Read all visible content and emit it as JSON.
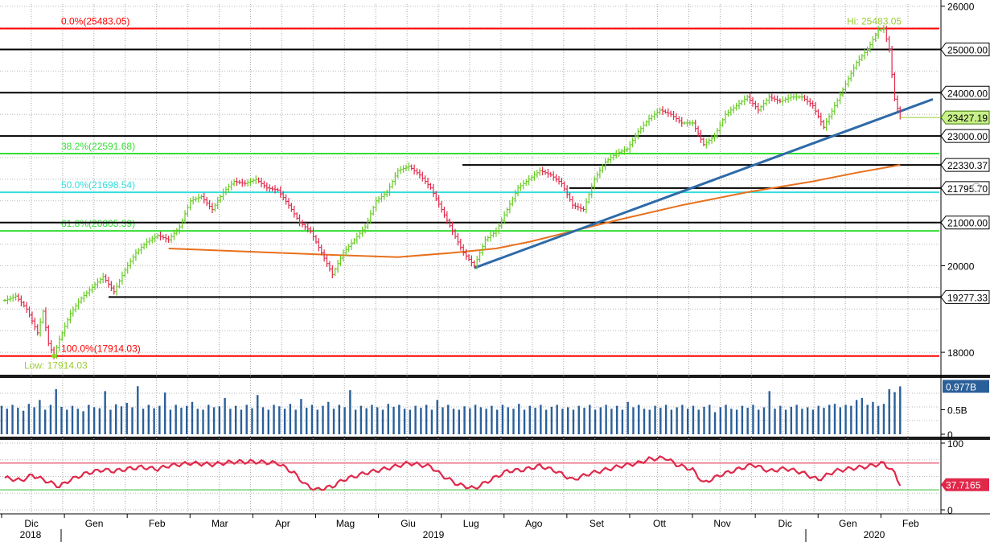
{
  "chart_data": {
    "type": "line",
    "main": {
      "price_ticks": [
        "18000",
        "20000",
        "26000"
      ],
      "price_tick_values": [
        18000,
        20000,
        26000
      ],
      "ylim": [
        17500,
        26050
      ],
      "high_label": "Hi: 25483.05",
      "low_label": "Low: 17914.03",
      "fib_levels": [
        {
          "label": "0.0%(25483.05)",
          "value": 25483.05,
          "color": "#ff0000"
        },
        {
          "label": "38.2%(22591.68)",
          "value": 22591.68,
          "color": "#33dd33"
        },
        {
          "label": "50.0%(21698.54)",
          "value": 21698.54,
          "color": "#33dddd"
        },
        {
          "label": "61.8%(20805.39)",
          "value": 20805.39,
          "color": "#33dd33"
        },
        {
          "label": "100.0%(17914.03)",
          "value": 17914.03,
          "color": "#ff0000"
        }
      ],
      "horizontal_levels": [
        {
          "label": "25000.00",
          "value": 25000
        },
        {
          "label": "24000.00",
          "value": 24000
        },
        {
          "label": "23000.00",
          "value": 23000
        },
        {
          "label": "22330.37",
          "value": 22330.37
        },
        {
          "label": "21795.70",
          "value": 21795.7
        },
        {
          "label": "21000.00",
          "value": 21000
        },
        {
          "label": "19277.33",
          "value": 19277.33
        }
      ],
      "last_price_label": "23427.19",
      "last_price": 23427.19,
      "price_path": [
        [
          0,
          19200
        ],
        [
          2,
          19300
        ],
        [
          4,
          19000
        ],
        [
          6,
          18450
        ],
        [
          7,
          18950
        ],
        [
          8,
          18200
        ],
        [
          9,
          17914
        ],
        [
          10,
          18300
        ],
        [
          12,
          18900
        ],
        [
          14,
          19250
        ],
        [
          16,
          19500
        ],
        [
          18,
          19750
        ],
        [
          20,
          19400
        ],
        [
          22,
          19900
        ],
        [
          24,
          20300
        ],
        [
          26,
          20550
        ],
        [
          28,
          20700
        ],
        [
          30,
          20600
        ],
        [
          32,
          20900
        ],
        [
          34,
          21500
        ],
        [
          36,
          21600
        ],
        [
          38,
          21300
        ],
        [
          40,
          21700
        ],
        [
          42,
          21950
        ],
        [
          44,
          21900
        ],
        [
          46,
          22000
        ],
        [
          48,
          21800
        ],
        [
          50,
          21750
        ],
        [
          52,
          21400
        ],
        [
          54,
          21000
        ],
        [
          56,
          20800
        ],
        [
          58,
          20300
        ],
        [
          60,
          19800
        ],
        [
          62,
          20300
        ],
        [
          64,
          20600
        ],
        [
          66,
          20900
        ],
        [
          68,
          21500
        ],
        [
          70,
          21700
        ],
        [
          72,
          22200
        ],
        [
          74,
          22300
        ],
        [
          76,
          22100
        ],
        [
          78,
          21800
        ],
        [
          80,
          21300
        ],
        [
          82,
          20800
        ],
        [
          84,
          20300
        ],
        [
          86,
          20000
        ],
        [
          88,
          20600
        ],
        [
          90,
          20800
        ],
        [
          92,
          21300
        ],
        [
          94,
          21800
        ],
        [
          96,
          22000
        ],
        [
          98,
          22200
        ],
        [
          100,
          22100
        ],
        [
          102,
          21900
        ],
        [
          104,
          21400
        ],
        [
          106,
          21300
        ],
        [
          108,
          22000
        ],
        [
          110,
          22400
        ],
        [
          112,
          22600
        ],
        [
          114,
          22700
        ],
        [
          116,
          23100
        ],
        [
          118,
          23400
        ],
        [
          120,
          23600
        ],
        [
          122,
          23500
        ],
        [
          124,
          23300
        ],
        [
          126,
          23300
        ],
        [
          128,
          22800
        ],
        [
          130,
          23000
        ],
        [
          132,
          23500
        ],
        [
          134,
          23700
        ],
        [
          136,
          23900
        ],
        [
          138,
          23600
        ],
        [
          140,
          23900
        ],
        [
          142,
          23800
        ],
        [
          144,
          23900
        ],
        [
          146,
          23900
        ],
        [
          148,
          23700
        ],
        [
          150,
          23200
        ],
        [
          152,
          23700
        ],
        [
          154,
          24200
        ],
        [
          156,
          24700
        ],
        [
          158,
          25000
        ],
        [
          160,
          25450
        ],
        [
          161,
          25483
        ],
        [
          162,
          25000
        ],
        [
          163,
          23850
        ],
        [
          164,
          23427
        ]
      ],
      "ma200_path": [
        [
          30,
          20400
        ],
        [
          50,
          20300
        ],
        [
          60,
          20250
        ],
        [
          72,
          20200
        ],
        [
          82,
          20300
        ],
        [
          90,
          20400
        ],
        [
          96,
          20550
        ],
        [
          104,
          20800
        ],
        [
          112,
          21050
        ],
        [
          124,
          21400
        ],
        [
          136,
          21700
        ],
        [
          148,
          21950
        ],
        [
          156,
          22150
        ],
        [
          164,
          22330
        ]
      ],
      "trendline": [
        [
          86,
          19950
        ],
        [
          170,
          23850
        ]
      ],
      "x_max": 170
    },
    "volume": {
      "ticks": [
        "0.5B",
        "0"
      ],
      "tick_values": [
        0.5,
        0
      ],
      "ymax": 1.05,
      "last_label": "0.977B",
      "last_value": 0.977,
      "values": [
        0.58,
        0.52,
        0.6,
        0.54,
        0.48,
        0.62,
        0.55,
        0.7,
        0.5,
        0.6,
        0.92,
        0.56,
        0.5,
        0.58,
        0.52,
        0.47,
        0.6,
        0.55,
        0.53,
        0.88,
        0.5,
        0.61,
        0.57,
        0.64,
        0.55,
        0.98,
        0.52,
        0.6,
        0.53,
        0.58,
        0.85,
        0.5,
        0.6,
        0.54,
        0.58,
        0.66,
        0.52,
        0.5,
        0.6,
        0.55,
        0.57,
        0.74,
        0.52,
        0.58,
        0.5,
        0.6,
        0.53,
        0.8,
        0.55,
        0.5,
        0.6,
        0.57,
        0.52,
        0.62,
        0.5,
        0.72,
        0.54,
        0.6,
        0.5,
        0.58,
        0.66,
        0.52,
        0.6,
        0.55,
        0.9,
        0.5,
        0.58,
        0.53,
        0.6,
        0.55,
        0.5,
        0.62,
        0.56,
        0.6,
        0.52,
        0.5,
        0.58,
        0.54,
        0.6,
        0.5,
        0.7,
        0.55,
        0.6,
        0.52,
        0.5,
        0.57,
        0.53,
        0.6,
        0.55,
        0.52,
        0.58,
        0.5,
        0.6,
        0.55,
        0.52,
        0.62,
        0.5,
        0.58,
        0.54,
        0.6,
        0.5,
        0.56,
        0.6,
        0.52,
        0.55,
        0.5,
        0.58,
        0.54,
        0.6,
        0.5,
        0.55,
        0.6,
        0.52,
        0.58,
        0.5,
        0.66,
        0.55,
        0.6,
        0.52,
        0.5,
        0.58,
        0.54,
        0.6,
        0.5,
        0.55,
        0.6,
        0.52,
        0.58,
        0.5,
        0.56,
        0.6,
        0.45,
        0.55,
        0.6,
        0.52,
        0.5,
        0.58,
        0.54,
        0.6,
        0.5,
        0.55,
        0.88,
        0.52,
        0.58,
        0.5,
        0.56,
        0.6,
        0.52,
        0.55,
        0.5,
        0.58,
        0.54,
        0.6,
        0.62,
        0.55,
        0.6,
        0.58,
        0.7,
        0.74,
        0.6,
        0.66,
        0.58,
        0.62,
        0.92,
        0.86,
        0.977
      ]
    },
    "rsi": {
      "ticks": [
        "100",
        "0"
      ],
      "tick_values": [
        100,
        0
      ],
      "levels": [
        70,
        30
      ],
      "last_label": "37.7165",
      "last_value": 37.7165,
      "path": [
        [
          0,
          48
        ],
        [
          3,
          44
        ],
        [
          5,
          52
        ],
        [
          8,
          42
        ],
        [
          10,
          35
        ],
        [
          12,
          45
        ],
        [
          15,
          55
        ],
        [
          18,
          60
        ],
        [
          20,
          58
        ],
        [
          23,
          62
        ],
        [
          25,
          64
        ],
        [
          28,
          61
        ],
        [
          30,
          66
        ],
        [
          34,
          70
        ],
        [
          38,
          68
        ],
        [
          42,
          72
        ],
        [
          46,
          72
        ],
        [
          50,
          70
        ],
        [
          53,
          55
        ],
        [
          55,
          38
        ],
        [
          57,
          30
        ],
        [
          60,
          35
        ],
        [
          62,
          45
        ],
        [
          66,
          55
        ],
        [
          70,
          62
        ],
        [
          74,
          70
        ],
        [
          78,
          65
        ],
        [
          80,
          52
        ],
        [
          83,
          38
        ],
        [
          86,
          32
        ],
        [
          89,
          45
        ],
        [
          92,
          58
        ],
        [
          95,
          60
        ],
        [
          98,
          66
        ],
        [
          101,
          58
        ],
        [
          104,
          45
        ],
        [
          107,
          54
        ],
        [
          110,
          60
        ],
        [
          113,
          66
        ],
        [
          116,
          70
        ],
        [
          118,
          76
        ],
        [
          121,
          78
        ],
        [
          123,
          68
        ],
        [
          126,
          60
        ],
        [
          128,
          40
        ],
        [
          131,
          52
        ],
        [
          134,
          60
        ],
        [
          137,
          68
        ],
        [
          140,
          58
        ],
        [
          143,
          62
        ],
        [
          146,
          56
        ],
        [
          149,
          45
        ],
        [
          152,
          58
        ],
        [
          155,
          62
        ],
        [
          158,
          65
        ],
        [
          161,
          70
        ],
        [
          163,
          55
        ],
        [
          164,
          37.7
        ]
      ]
    },
    "x_axis": {
      "months": [
        "Dic",
        "Gen",
        "Feb",
        "Mar",
        "Apr",
        "Mag",
        "Giu",
        "Lug",
        "Ago",
        "Set",
        "Ott",
        "Nov",
        "Dic",
        "Gen",
        "Feb"
      ],
      "years": [
        "2018",
        "2019",
        "2020"
      ]
    }
  }
}
